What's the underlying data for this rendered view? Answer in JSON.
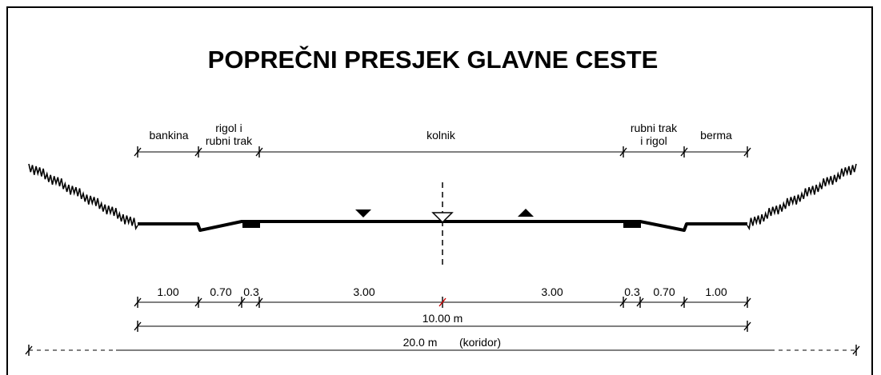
{
  "title": "POPREČNI PRESJEK GLAVNE CESTE",
  "top_labels": {
    "bankina": "bankina",
    "rigol_left": [
      "rigol i",
      "rubni trak"
    ],
    "kolnik": "kolnik",
    "rigol_right": [
      "rubni trak",
      "i rigol"
    ],
    "berma": "berma"
  },
  "dimensions": [
    "1.00",
    "0.70",
    "0.3",
    "3.00",
    "3.00",
    "0.3",
    "0.70",
    "1.00"
  ],
  "total_road": "10.00 m",
  "corridor": {
    "width": "20.0 m",
    "note": "(koridor)"
  }
}
